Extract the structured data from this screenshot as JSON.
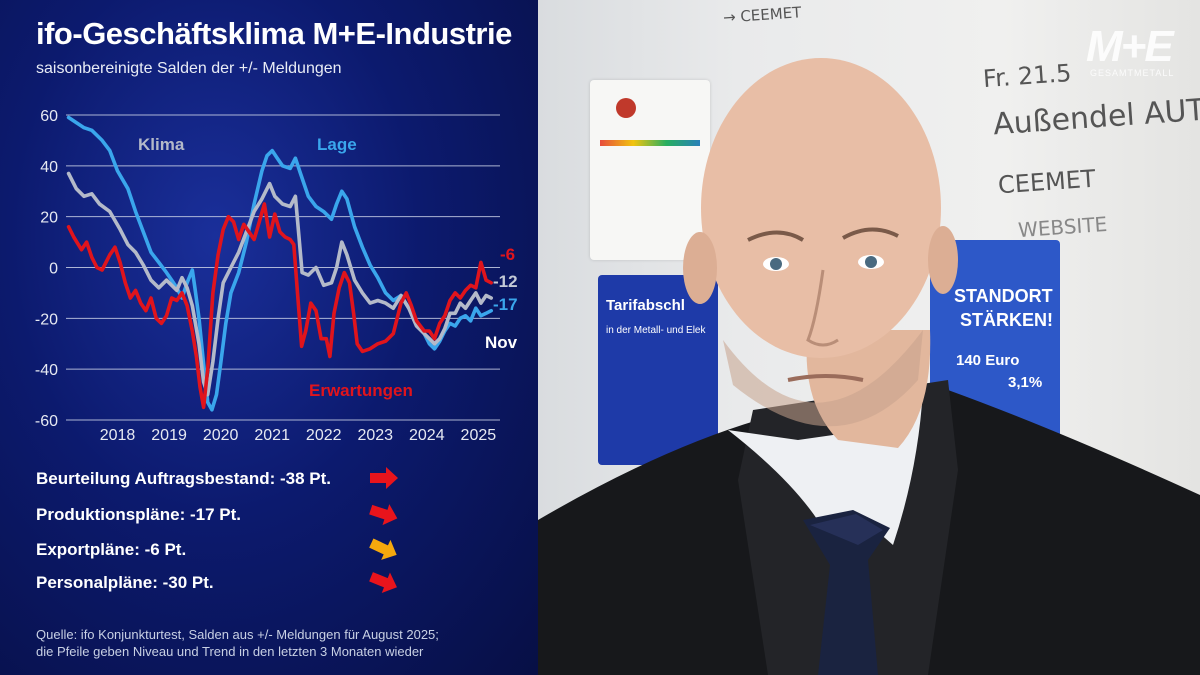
{
  "header": {
    "title": "ifo-Geschäftsklima M+E-Industrie",
    "subtitle": "saisonbereinigte Salden der +/- Meldungen"
  },
  "chart_data": {
    "type": "line",
    "title": "ifo-Geschäftsklima M+E-Industrie",
    "subtitle": "saisonbereinigte Salden der +/- Meldungen",
    "ylim": [
      -60,
      60
    ],
    "yticks": [
      "60",
      "40",
      "20",
      "0",
      "-20",
      "-40",
      "-60"
    ],
    "xlim": [
      2017.5,
      2025.92
    ],
    "xticks": [
      "2018",
      "2019",
      "2020",
      "2021",
      "2022",
      "2023",
      "2024",
      "2025"
    ],
    "grid": true,
    "series": [
      {
        "name": "Lage",
        "color": "#3aa6ec",
        "end_label": "-17",
        "points": [
          [
            2017.55,
            59
          ],
          [
            2017.7,
            57
          ],
          [
            2017.85,
            55
          ],
          [
            2018.0,
            54
          ],
          [
            2018.2,
            50
          ],
          [
            2018.35,
            46
          ],
          [
            2018.5,
            38
          ],
          [
            2018.7,
            31
          ],
          [
            2018.85,
            22
          ],
          [
            2019.0,
            14
          ],
          [
            2019.15,
            6
          ],
          [
            2019.3,
            2
          ],
          [
            2019.45,
            -2
          ],
          [
            2019.55,
            -5
          ],
          [
            2019.65,
            -8
          ],
          [
            2019.75,
            -12
          ],
          [
            2019.85,
            -6
          ],
          [
            2019.95,
            -1
          ],
          [
            2020.0,
            -8
          ],
          [
            2020.08,
            -20
          ],
          [
            2020.17,
            -38
          ],
          [
            2020.25,
            -53
          ],
          [
            2020.33,
            -56
          ],
          [
            2020.42,
            -50
          ],
          [
            2020.5,
            -38
          ],
          [
            2020.6,
            -22
          ],
          [
            2020.7,
            -10
          ],
          [
            2020.85,
            -2
          ],
          [
            2021.0,
            10
          ],
          [
            2021.15,
            25
          ],
          [
            2021.3,
            38
          ],
          [
            2021.4,
            44
          ],
          [
            2021.5,
            46
          ],
          [
            2021.6,
            43
          ],
          [
            2021.7,
            40
          ],
          [
            2021.85,
            39
          ],
          [
            2021.95,
            43
          ],
          [
            2022.05,
            37
          ],
          [
            2022.2,
            28
          ],
          [
            2022.35,
            24
          ],
          [
            2022.5,
            22
          ],
          [
            2022.65,
            19
          ],
          [
            2022.75,
            25
          ],
          [
            2022.85,
            30
          ],
          [
            2022.95,
            27
          ],
          [
            2023.1,
            16
          ],
          [
            2023.25,
            8
          ],
          [
            2023.4,
            1
          ],
          [
            2023.55,
            -4
          ],
          [
            2023.7,
            -10
          ],
          [
            2023.85,
            -13
          ],
          [
            2024.0,
            -11
          ],
          [
            2024.15,
            -16
          ],
          [
            2024.3,
            -21
          ],
          [
            2024.45,
            -26
          ],
          [
            2024.55,
            -30
          ],
          [
            2024.65,
            -32
          ],
          [
            2024.75,
            -29
          ],
          [
            2024.85,
            -25
          ],
          [
            2024.95,
            -22
          ],
          [
            2025.05,
            -23
          ],
          [
            2025.15,
            -20
          ],
          [
            2025.25,
            -19
          ],
          [
            2025.35,
            -21
          ],
          [
            2025.45,
            -16
          ],
          [
            2025.55,
            -19
          ],
          [
            2025.65,
            -18
          ],
          [
            2025.75,
            -17
          ]
        ]
      },
      {
        "name": "Klima",
        "color": "#b4bac9",
        "end_label": "-12",
        "points": [
          [
            2017.55,
            37
          ],
          [
            2017.7,
            31
          ],
          [
            2017.85,
            28
          ],
          [
            2018.0,
            29
          ],
          [
            2018.15,
            25
          ],
          [
            2018.35,
            22
          ],
          [
            2018.55,
            15
          ],
          [
            2018.7,
            9
          ],
          [
            2018.85,
            6
          ],
          [
            2019.0,
            1
          ],
          [
            2019.15,
            -5
          ],
          [
            2019.3,
            -8
          ],
          [
            2019.45,
            -5
          ],
          [
            2019.55,
            -7
          ],
          [
            2019.65,
            -9
          ],
          [
            2019.75,
            -4
          ],
          [
            2019.85,
            -8
          ],
          [
            2019.95,
            -15
          ],
          [
            2020.08,
            -30
          ],
          [
            2020.17,
            -45
          ],
          [
            2020.25,
            -50
          ],
          [
            2020.35,
            -37
          ],
          [
            2020.45,
            -20
          ],
          [
            2020.55,
            -6
          ],
          [
            2020.7,
            0
          ],
          [
            2020.85,
            6
          ],
          [
            2021.0,
            14
          ],
          [
            2021.15,
            22
          ],
          [
            2021.3,
            27
          ],
          [
            2021.45,
            33
          ],
          [
            2021.55,
            28
          ],
          [
            2021.7,
            25
          ],
          [
            2021.85,
            24
          ],
          [
            2021.95,
            28
          ],
          [
            2022.02,
            12
          ],
          [
            2022.08,
            -2
          ],
          [
            2022.2,
            -3
          ],
          [
            2022.35,
            0
          ],
          [
            2022.5,
            -7
          ],
          [
            2022.65,
            -6
          ],
          [
            2022.75,
            0
          ],
          [
            2022.85,
            10
          ],
          [
            2022.95,
            5
          ],
          [
            2023.1,
            -5
          ],
          [
            2023.25,
            -10
          ],
          [
            2023.4,
            -14
          ],
          [
            2023.55,
            -13
          ],
          [
            2023.7,
            -14
          ],
          [
            2023.85,
            -16
          ],
          [
            2024.0,
            -11
          ],
          [
            2024.15,
            -16
          ],
          [
            2024.3,
            -23
          ],
          [
            2024.45,
            -26
          ],
          [
            2024.55,
            -28
          ],
          [
            2024.65,
            -30
          ],
          [
            2024.75,
            -28
          ],
          [
            2024.85,
            -24
          ],
          [
            2024.95,
            -18
          ],
          [
            2025.05,
            -18
          ],
          [
            2025.15,
            -14
          ],
          [
            2025.25,
            -16
          ],
          [
            2025.35,
            -13
          ],
          [
            2025.45,
            -10
          ],
          [
            2025.55,
            -14
          ],
          [
            2025.65,
            -11
          ],
          [
            2025.75,
            -12
          ]
        ]
      },
      {
        "name": "Erwartungen",
        "color": "#e0141c",
        "end_label": "-6",
        "points": [
          [
            2017.55,
            16
          ],
          [
            2017.65,
            12
          ],
          [
            2017.8,
            7
          ],
          [
            2017.9,
            10
          ],
          [
            2018.0,
            4
          ],
          [
            2018.1,
            0
          ],
          [
            2018.2,
            -1
          ],
          [
            2018.35,
            5
          ],
          [
            2018.45,
            8
          ],
          [
            2018.55,
            2
          ],
          [
            2018.65,
            -6
          ],
          [
            2018.75,
            -12
          ],
          [
            2018.85,
            -9
          ],
          [
            2018.95,
            -14
          ],
          [
            2019.05,
            -17
          ],
          [
            2019.15,
            -12
          ],
          [
            2019.25,
            -20
          ],
          [
            2019.35,
            -22
          ],
          [
            2019.45,
            -19
          ],
          [
            2019.55,
            -12
          ],
          [
            2019.65,
            -13
          ],
          [
            2019.75,
            -10
          ],
          [
            2019.85,
            -15
          ],
          [
            2019.95,
            -25
          ],
          [
            2020.03,
            -35
          ],
          [
            2020.1,
            -47
          ],
          [
            2020.17,
            -55
          ],
          [
            2020.25,
            -40
          ],
          [
            2020.35,
            -10
          ],
          [
            2020.45,
            5
          ],
          [
            2020.55,
            15
          ],
          [
            2020.65,
            20
          ],
          [
            2020.75,
            18
          ],
          [
            2020.85,
            11
          ],
          [
            2020.95,
            17
          ],
          [
            2021.05,
            14
          ],
          [
            2021.15,
            11
          ],
          [
            2021.25,
            18
          ],
          [
            2021.35,
            25
          ],
          [
            2021.45,
            12
          ],
          [
            2021.55,
            21
          ],
          [
            2021.65,
            14
          ],
          [
            2021.75,
            12
          ],
          [
            2021.85,
            11
          ],
          [
            2021.92,
            9
          ],
          [
            2022.0,
            -12
          ],
          [
            2022.07,
            -31
          ],
          [
            2022.15,
            -25
          ],
          [
            2022.25,
            -14
          ],
          [
            2022.35,
            -17
          ],
          [
            2022.45,
            -28
          ],
          [
            2022.55,
            -28
          ],
          [
            2022.62,
            -35
          ],
          [
            2022.7,
            -18
          ],
          [
            2022.8,
            -8
          ],
          [
            2022.9,
            -2
          ],
          [
            2023.0,
            -6
          ],
          [
            2023.08,
            -18
          ],
          [
            2023.15,
            -30
          ],
          [
            2023.25,
            -33
          ],
          [
            2023.4,
            -32
          ],
          [
            2023.55,
            -30
          ],
          [
            2023.7,
            -29
          ],
          [
            2023.85,
            -26
          ],
          [
            2024.0,
            -14
          ],
          [
            2024.1,
            -10
          ],
          [
            2024.2,
            -15
          ],
          [
            2024.3,
            -21
          ],
          [
            2024.45,
            -25
          ],
          [
            2024.55,
            -25
          ],
          [
            2024.65,
            -28
          ],
          [
            2024.75,
            -22
          ],
          [
            2024.85,
            -19
          ],
          [
            2024.95,
            -13
          ],
          [
            2025.05,
            -10
          ],
          [
            2025.15,
            -12
          ],
          [
            2025.25,
            -9
          ],
          [
            2025.35,
            -7
          ],
          [
            2025.45,
            -8
          ],
          [
            2025.55,
            2
          ],
          [
            2025.65,
            -5
          ],
          [
            2025.75,
            -6
          ]
        ]
      }
    ],
    "annotations": {
      "klima_label": "Klima",
      "lage_label": "Lage",
      "erwartungen_label": "Erwartungen",
      "month_label": "Nov"
    }
  },
  "indicators": [
    {
      "label": "Beurteilung Auftragsbestand: -38 Pt.",
      "arrow_icon": "arrow-right-icon",
      "color": "#e8141c",
      "tilt_deg": 0
    },
    {
      "label": "Produktionspläne: -17 Pt.",
      "arrow_icon": "arrow-down-right-icon",
      "color": "#e8141c",
      "tilt_deg": 18
    },
    {
      "label": "Exportpläne: -6 Pt.",
      "arrow_icon": "arrow-down-right-icon",
      "color": "#f5a80d",
      "tilt_deg": 25
    },
    {
      "label": "Personalpläne: -30 Pt.",
      "arrow_icon": "arrow-down-right-icon",
      "color": "#e8141c",
      "tilt_deg": 22
    }
  ],
  "source": {
    "line1": "Quelle: ifo Konjunkturtest, Salden aus +/- Meldungen für August 2025;",
    "line2": "die Pfeile geben Niveau und Trend in den letzten 3 Monaten wieder"
  },
  "photo": {
    "whiteboard_lines": [
      "→ CEEMET",
      "Fr. 21.5",
      "Außendel AUT",
      "CEEMET",
      "WEBSITE"
    ],
    "poster_left_title": "Tarifabschl",
    "poster_left_sub": "in der Metall- und Elek",
    "poster_right_title_1": "STANDORT",
    "poster_right_title_2": "STÄRKEN!",
    "poster_right_amount": "140 Euro",
    "poster_right_percent": "3,1%",
    "logo_text": "M+E",
    "logo_sub": "GESAMTMETALL"
  },
  "colors": {
    "panel_bg": "#0c1a6e",
    "lage": "#3aa6ec",
    "klima": "#b4bac9",
    "erwartungen": "#e0141c"
  }
}
